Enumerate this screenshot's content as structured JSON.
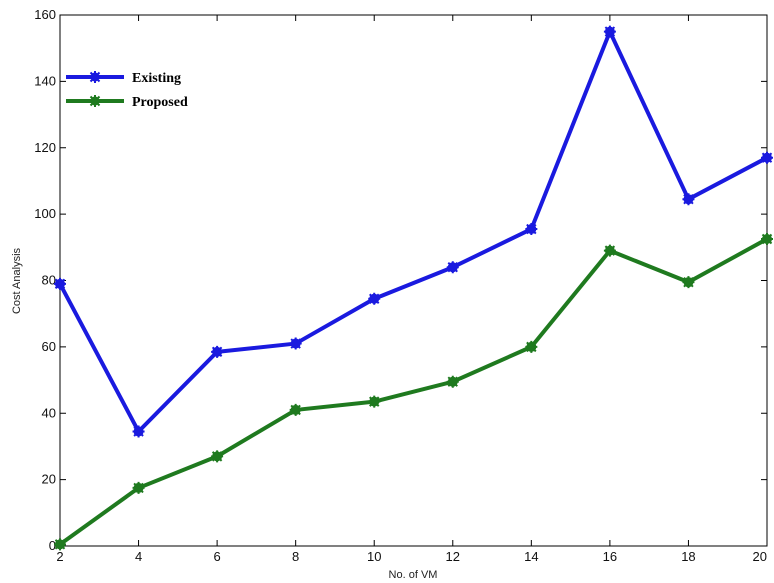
{
  "chart_data": {
    "type": "line",
    "title": "",
    "xlabel": "No. of VM",
    "ylabel": "Cost Analysis",
    "x": [
      2,
      4,
      6,
      8,
      10,
      12,
      14,
      16,
      18,
      20
    ],
    "xlim": [
      2,
      20
    ],
    "ylim": [
      0,
      160
    ],
    "xticks": [
      "2",
      "4",
      "6",
      "8",
      "10",
      "12",
      "14",
      "16",
      "18",
      "20"
    ],
    "yticks": [
      "0",
      "20",
      "40",
      "60",
      "80",
      "100",
      "120",
      "140",
      "160"
    ],
    "grid": false,
    "legend_position": "top-left",
    "series": [
      {
        "name": "Existing",
        "color": "#1a1adf",
        "values": [
          79,
          34.5,
          58.5,
          61,
          74.5,
          84,
          95.5,
          155,
          104.5,
          117
        ]
      },
      {
        "name": "Proposed",
        "color": "#1f7a1f",
        "values": [
          0.5,
          17.5,
          27,
          41,
          43.5,
          49.5,
          60,
          89,
          79.5,
          92.5
        ]
      }
    ]
  }
}
